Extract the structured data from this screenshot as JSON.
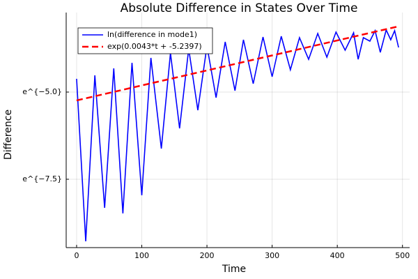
{
  "chart_data": {
    "type": "line",
    "title": "Absolute Difference in States Over Time",
    "xlabel": "Time",
    "ylabel": "Difference",
    "xlim": [
      -16,
      511
    ],
    "xticks": [
      0,
      100,
      200,
      300,
      400,
      500
    ],
    "ylim": [
      7.79e-05,
      0.065875
    ],
    "yscale": "log",
    "yticks": [
      {
        "value": 0.0067379,
        "label": "e^{−5.0}"
      },
      {
        "value": 0.00055308,
        "label": "e^{−7.5}"
      }
    ],
    "grid": true,
    "legend": "top-left",
    "series": [
      {
        "name": "ln(difference in mode1)",
        "color": "#0000ff",
        "style": "solid",
        "x": [
          0,
          14,
          28,
          43,
          57,
          71,
          85,
          100,
          114,
          130,
          144,
          158,
          172,
          186,
          200,
          214,
          228,
          243,
          256,
          271,
          286,
          300,
          314,
          328,
          342,
          356,
          370,
          384,
          398,
          412,
          425,
          432,
          440,
          450,
          458,
          466,
          475,
          482,
          488,
          494
        ],
        "values": [
          0.009853,
          9.327e-05,
          0.010889,
          0.0002436,
          0.0133,
          0.0002076,
          0.015607,
          0.00034915,
          0.017953,
          0.0013334,
          0.020651,
          0.0023816,
          0.023284,
          0.0040059,
          0.025223,
          0.0057414,
          0.02844,
          0.0070128,
          0.030197,
          0.0085656,
          0.032712,
          0.010462,
          0.033373,
          0.012779,
          0.032064,
          0.01725,
          0.036153,
          0.018316,
          0.037628,
          0.022371,
          0.036883,
          0.01725,
          0.032064,
          0.029013,
          0.039164,
          0.021069,
          0.039957,
          0.030197,
          0.039164,
          0.024234
        ]
      },
      {
        "name": "exp(0.0043*t + -5.2397)",
        "color": "#ff0000",
        "style": "dashed",
        "x": [
          0,
          494
        ],
        "values": [
          0.005303,
          0.04436
        ]
      }
    ]
  }
}
